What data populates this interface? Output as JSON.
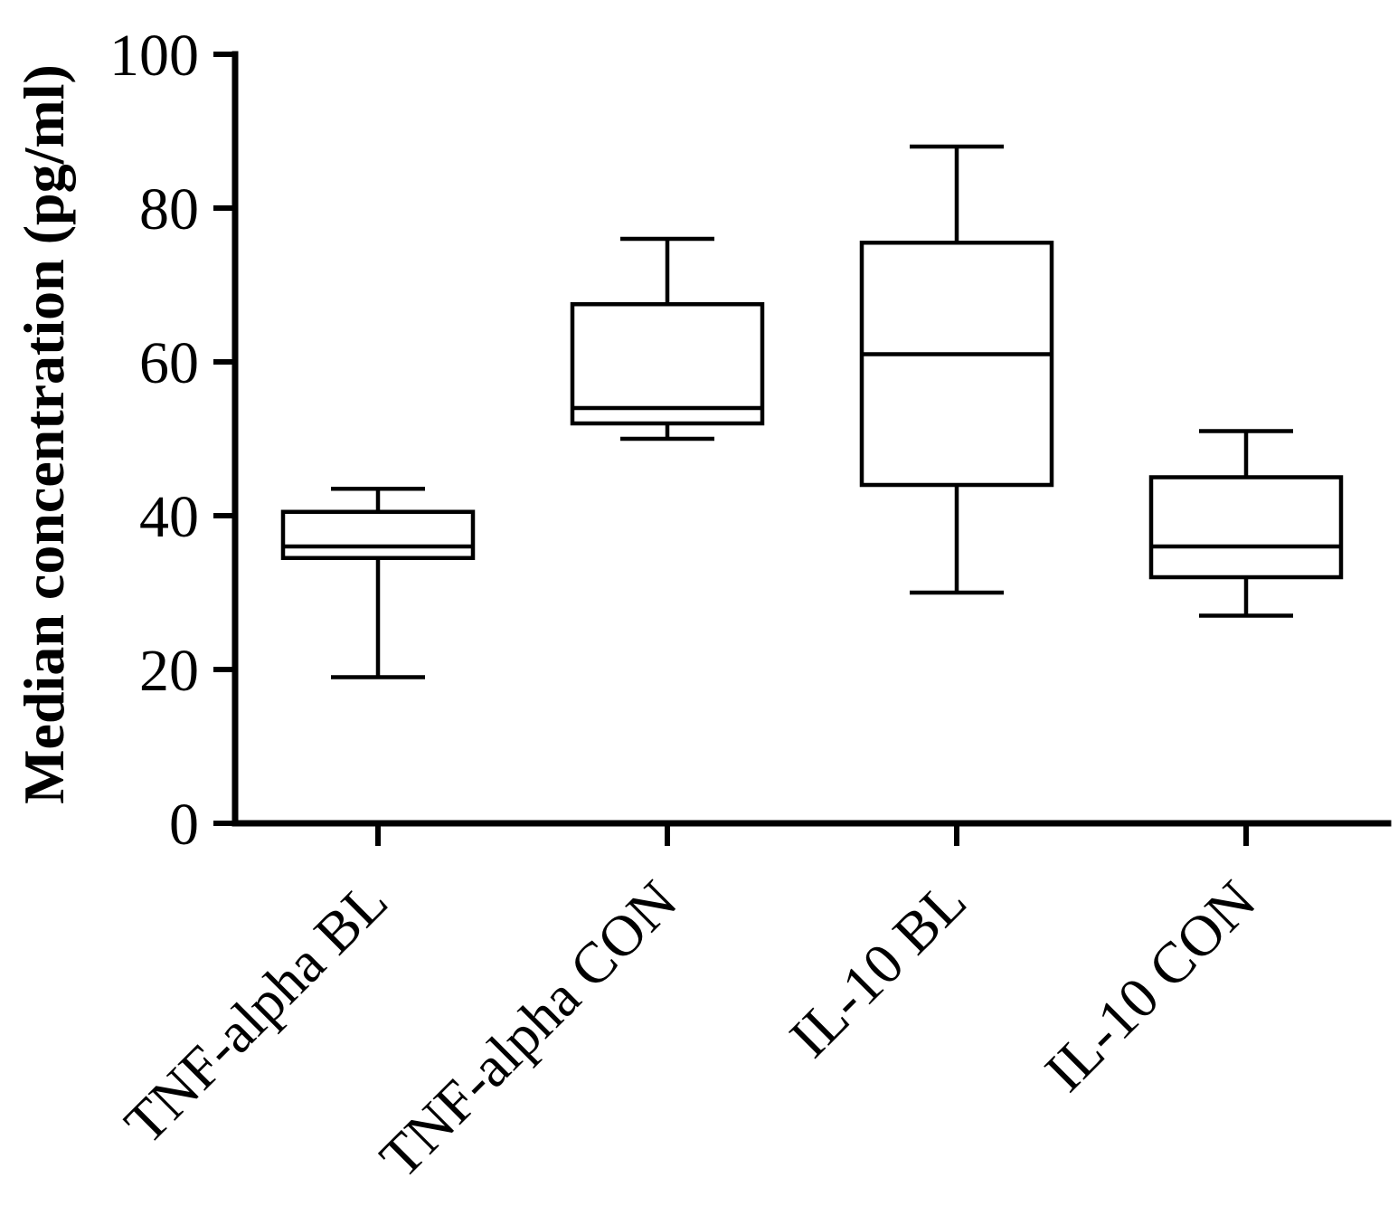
{
  "chart_data": {
    "type": "box",
    "title": "",
    "xlabel": "",
    "ylabel": "Median concentration (pg/ml)",
    "ylim": [
      0,
      100
    ],
    "yticks": [
      0,
      20,
      40,
      60,
      80,
      100
    ],
    "grid": false,
    "legend": "none",
    "categories": [
      "TNF-alpha BL",
      "TNF-alpha CON",
      "IL-10 BL",
      "IL-10 CON"
    ],
    "boxes": [
      {
        "category": "TNF-alpha BL",
        "min": 19,
        "q1": 34.5,
        "median": 36,
        "q3": 40.5,
        "max": 43.5
      },
      {
        "category": "TNF-alpha CON",
        "min": 50,
        "q1": 52,
        "median": 54,
        "q3": 67.5,
        "max": 76
      },
      {
        "category": "IL-10 BL",
        "min": 30,
        "q1": 44,
        "median": 61,
        "q3": 75.5,
        "max": 88
      },
      {
        "category": "IL-10 CON",
        "min": 27,
        "q1": 32,
        "median": 36,
        "q3": 45,
        "max": 51
      }
    ],
    "colors": {
      "stroke": "#000000",
      "fill": "#ffffff"
    }
  }
}
